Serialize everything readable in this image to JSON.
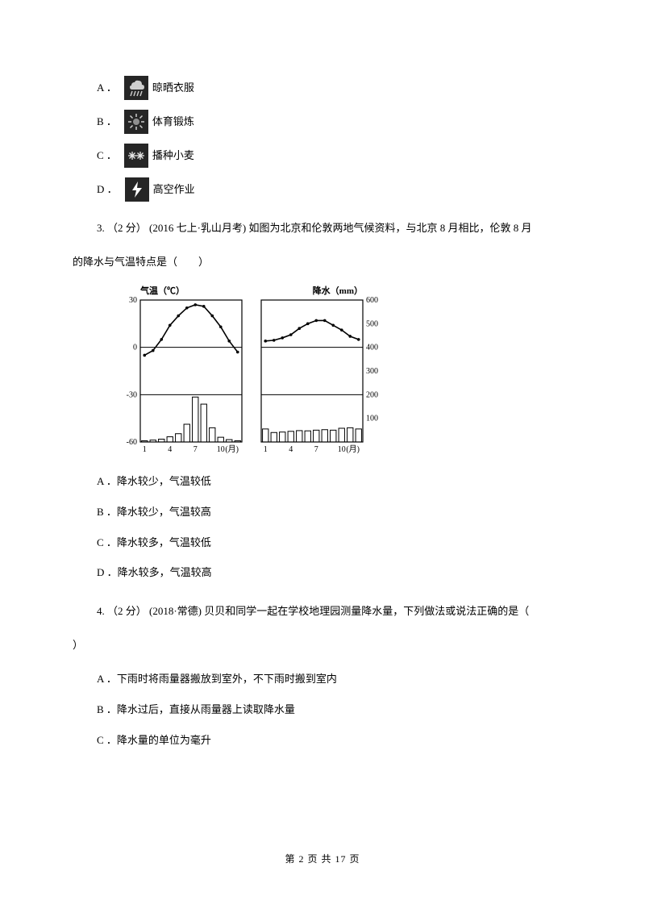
{
  "q2": {
    "options": {
      "A": {
        "letter": "A ．",
        "text": "晾晒衣服",
        "icon": "rain-icon"
      },
      "B": {
        "letter": "B ．",
        "text": "体育锻炼",
        "icon": "sun-icon"
      },
      "C": {
        "letter": "C ．",
        "text": "播种小麦",
        "icon": "snow-icon"
      },
      "D": {
        "letter": "D ．",
        "text": "高空作业",
        "icon": "lightning-icon"
      }
    }
  },
  "q3": {
    "stem_line1": "3. （2 分） (2016 七上·乳山月考)  如图为北京和伦敦两地气候资料，与北京 8 月相比，伦敦 8 月",
    "stem_line2": "的降水与气温特点是（　　）",
    "options": {
      "A": "A ．降水较少，气温较低",
      "B": "B ．降水较少，气温较高",
      "C": "C ．降水较多，气温较低",
      "D": "D ．降水较多，气温较高"
    },
    "chart": {
      "type": "dual-climate",
      "left_label": "气温（℃）",
      "right_label": "降水（mm）",
      "temp_axis": {
        "min": -60,
        "max": 30,
        "ticks": [
          -60,
          -30,
          0,
          30
        ]
      },
      "precip_axis": {
        "min": 0,
        "max": 600,
        "ticks": [
          100,
          200,
          300,
          400,
          500,
          600
        ]
      },
      "month_ticks": [
        1,
        4,
        7,
        10
      ],
      "month_unit": "(月)",
      "beijing": {
        "temp": [
          -5,
          -2,
          5,
          14,
          20,
          25,
          27,
          26,
          20,
          13,
          4,
          -3
        ],
        "precip": [
          5,
          8,
          12,
          22,
          35,
          75,
          190,
          160,
          60,
          20,
          10,
          5
        ]
      },
      "london": {
        "temp": [
          4,
          4.5,
          6,
          8,
          12,
          15,
          17,
          17,
          14,
          11,
          7,
          5
        ],
        "precip": [
          55,
          40,
          42,
          45,
          48,
          47,
          50,
          52,
          50,
          58,
          60,
          55
        ]
      },
      "colors": {
        "stroke": "#000000",
        "bg": "#ffffff",
        "label_fontsize": 11,
        "axis_fontsize": 10
      }
    }
  },
  "q4": {
    "stem_line1": "4. （2 分） (2018·常德)  贝贝和同学一起在学校地理园测量降水量，下列做法或说法正确的是（",
    "stem_line2": "）",
    "options": {
      "A": "A ．下雨时将雨量器搬放到室外，不下雨时搬到室内",
      "B": "B ．降水过后，直接从雨量器上读取降水量",
      "C": "C ．降水量的单位为毫升"
    }
  },
  "footer": "第 2 页 共 17 页"
}
